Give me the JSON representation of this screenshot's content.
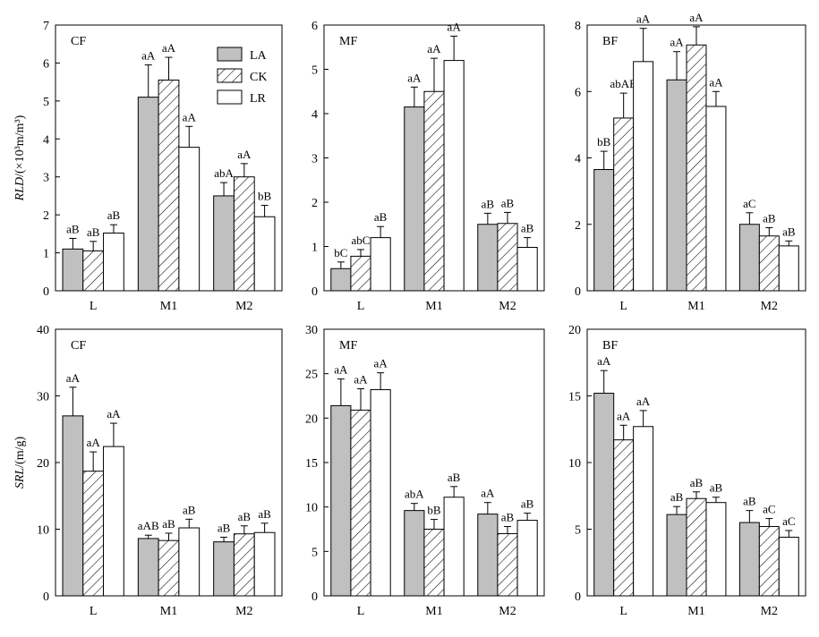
{
  "chart_data": [
    {
      "type": "bar",
      "panel_label": "CF",
      "categories": [
        "L",
        "M1",
        "M2"
      ],
      "ylabel_italic": "RLD",
      "ylabel_rest": "/(×10³m/m³)",
      "ylim": [
        0,
        7
      ],
      "yticks": [
        0,
        1,
        2,
        3,
        4,
        5,
        6,
        7
      ],
      "series": [
        {
          "name": "LA",
          "values": [
            1.1,
            5.1,
            2.5
          ],
          "errors": [
            0.28,
            0.85,
            0.35
          ],
          "letters": [
            "aB",
            "aA",
            "abA"
          ]
        },
        {
          "name": "CK",
          "values": [
            1.05,
            5.55,
            3.0
          ],
          "errors": [
            0.25,
            0.6,
            0.35
          ],
          "letters": [
            "aB",
            "aA",
            "aA"
          ]
        },
        {
          "name": "LR",
          "values": [
            1.52,
            3.78,
            1.95
          ],
          "errors": [
            0.22,
            0.55,
            0.3
          ],
          "letters": [
            "aB",
            "aA",
            "bB"
          ]
        }
      ],
      "legend": {
        "show": true,
        "position": "top-right"
      }
    },
    {
      "type": "bar",
      "panel_label": "MF",
      "categories": [
        "L",
        "M1",
        "M2"
      ],
      "ylim": [
        0,
        6
      ],
      "yticks": [
        0,
        1,
        2,
        3,
        4,
        5,
        6
      ],
      "series": [
        {
          "name": "LA",
          "values": [
            0.5,
            4.15,
            1.5
          ],
          "errors": [
            0.15,
            0.45,
            0.25
          ],
          "letters": [
            "bC",
            "aA",
            "aB"
          ]
        },
        {
          "name": "CK",
          "values": [
            0.78,
            4.5,
            1.52
          ],
          "errors": [
            0.15,
            0.75,
            0.25
          ],
          "letters": [
            "abC",
            "aA",
            "aB"
          ]
        },
        {
          "name": "LR",
          "values": [
            1.2,
            5.2,
            0.98
          ],
          "errors": [
            0.25,
            0.55,
            0.22
          ],
          "letters": [
            "aB",
            "aA",
            "aB"
          ]
        }
      ]
    },
    {
      "type": "bar",
      "panel_label": "BF",
      "categories": [
        "L",
        "M1",
        "M2"
      ],
      "ylim": [
        0,
        8
      ],
      "yticks": [
        0,
        2,
        4,
        6,
        8
      ],
      "series": [
        {
          "name": "LA",
          "values": [
            3.65,
            6.35,
            2.0
          ],
          "errors": [
            0.55,
            0.85,
            0.35
          ],
          "letters": [
            "bB",
            "aA",
            "aC"
          ]
        },
        {
          "name": "CK",
          "values": [
            5.2,
            7.4,
            1.65
          ],
          "errors": [
            0.75,
            0.55,
            0.25
          ],
          "letters": [
            "abAB",
            "aA",
            "aB"
          ]
        },
        {
          "name": "LR",
          "values": [
            6.9,
            5.55,
            1.35
          ],
          "errors": [
            1.0,
            0.45,
            0.15
          ],
          "letters": [
            "aA",
            "aA",
            "aB"
          ]
        }
      ]
    },
    {
      "type": "bar",
      "panel_label": "CF",
      "categories": [
        "L",
        "M1",
        "M2"
      ],
      "ylabel_italic": "SRL",
      "ylabel_rest": "/(m/g)",
      "ylim": [
        0,
        40
      ],
      "yticks": [
        0,
        10,
        20,
        30,
        40
      ],
      "series": [
        {
          "name": "LA",
          "values": [
            27,
            8.6,
            8.1
          ],
          "errors": [
            4.3,
            0.5,
            0.7
          ],
          "letters": [
            "aA",
            "aAB",
            "aB"
          ]
        },
        {
          "name": "CK",
          "values": [
            18.7,
            8.3,
            9.3
          ],
          "errors": [
            2.9,
            1.1,
            1.2
          ],
          "letters": [
            "aA",
            "aB",
            "aB"
          ]
        },
        {
          "name": "LR",
          "values": [
            22.4,
            10.2,
            9.5
          ],
          "errors": [
            3.5,
            1.3,
            1.4
          ],
          "letters": [
            "aA",
            "aB",
            "aB"
          ]
        }
      ]
    },
    {
      "type": "bar",
      "panel_label": "MF",
      "categories": [
        "L",
        "M1",
        "M2"
      ],
      "ylim": [
        0,
        30
      ],
      "yticks": [
        0,
        5,
        10,
        15,
        20,
        25,
        30
      ],
      "series": [
        {
          "name": "LA",
          "values": [
            21.4,
            9.6,
            9.2
          ],
          "errors": [
            3.0,
            0.8,
            1.3
          ],
          "letters": [
            "aA",
            "abA",
            "aA"
          ]
        },
        {
          "name": "CK",
          "values": [
            20.9,
            7.5,
            7.0
          ],
          "errors": [
            2.4,
            1.1,
            0.8
          ],
          "letters": [
            "aA",
            "bB",
            "aB"
          ]
        },
        {
          "name": "LR",
          "values": [
            23.2,
            11.1,
            8.5
          ],
          "errors": [
            1.9,
            1.2,
            0.8
          ],
          "letters": [
            "aA",
            "aB",
            "aB"
          ]
        }
      ]
    },
    {
      "type": "bar",
      "panel_label": "BF",
      "categories": [
        "L",
        "M1",
        "M2"
      ],
      "ylim": [
        0,
        20
      ],
      "yticks": [
        0,
        5,
        10,
        15,
        20
      ],
      "series": [
        {
          "name": "LA",
          "values": [
            15.2,
            6.1,
            5.5
          ],
          "errors": [
            1.7,
            0.6,
            0.9
          ],
          "letters": [
            "aA",
            "aB",
            "aB"
          ]
        },
        {
          "name": "CK",
          "values": [
            11.7,
            7.3,
            5.2
          ],
          "errors": [
            1.1,
            0.5,
            0.6
          ],
          "letters": [
            "aA",
            "aB",
            "aC"
          ]
        },
        {
          "name": "LR",
          "values": [
            12.7,
            7.0,
            4.4
          ],
          "errors": [
            1.2,
            0.4,
            0.5
          ],
          "letters": [
            "aA",
            "aB",
            "aC"
          ]
        }
      ]
    }
  ]
}
